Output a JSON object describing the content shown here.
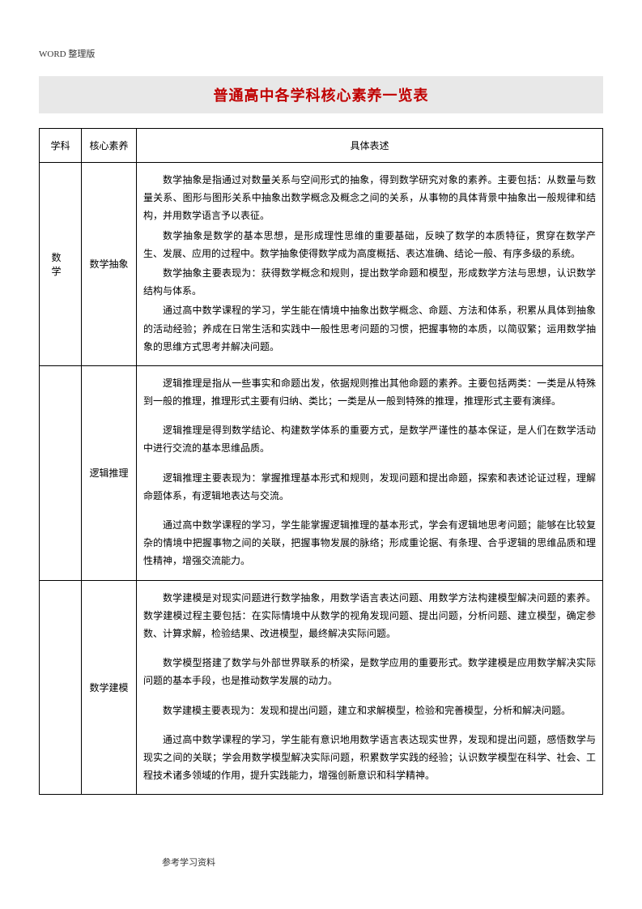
{
  "header": "WORD 整理版",
  "title": "普通高中各学科核心素养一览表",
  "table": {
    "headers": {
      "subject": "学科",
      "core": "核心素养",
      "desc": "具体表述"
    },
    "subject": "数 学",
    "rows": [
      {
        "core": "数学抽象",
        "paragraphs": [
          "数学抽象是指通过对数量关系与空间形式的抽象，得到数学研究对象的素养。主要包括：从数量与数量关系、图形与图形关系中抽象出数学概念及概念之间的关系，从事物的具体背景中抽象出一般规律和结构，并用数学语言予以表征。",
          "数学抽象是数学的基本思想，是形成理性思维的重要基础，反映了数学的本质特征，贯穿在数学产生、发展、应用的过程中。数学抽象使得数学成为高度概括、表达准确、结论一般、有序多级的系统。",
          "数学抽象主要表现为：获得数学概念和规则，提出数学命题和模型，形成数学方法与思想，认识数学结构与体系。",
          "通过高中数学课程的学习，学生能在情境中抽象出数学概念、命题、方法和体系，积累从具体到抽象的活动经验；养成在日常生活和实践中一般性思考问题的习惯，把握事物的本质，以简驭繁；运用数学抽象的思维方式思考并解决问题。"
        ]
      },
      {
        "core": "逻辑推理",
        "paragraphs": [
          "逻辑推理是指从一些事实和命题出发，依据规则推出其他命题的素养。主要包括两类：一类是从特殊到一般的推理，推理形式主要有归纳、类比；一类是从一般到特殊的推理，推理形式主要有演绎。",
          "逻辑推理是得到数学结论、构建数学体系的重要方式，是数学严谨性的基本保证，是人们在数学活动中进行交流的基本思维品质。",
          "逻辑推理主要表现为：掌握推理基本形式和规则，发现问题和提出命题，探索和表述论证过程，理解命题体系，有逻辑地表达与交流。",
          "通过高中数学课程的学习，学生能掌握逻辑推理的基本形式，学会有逻辑地思考问题；能够在比较复杂的情境中把握事物之间的关联，把握事物发展的脉络；形成重论据、有条理、合乎逻辑的思维品质和理性精神，增强交流能力。"
        ]
      },
      {
        "core": "数学建模",
        "paragraphs": [
          "数学建模是对现实问题进行数学抽象，用数学语言表达问题、用数学方法构建模型解决问题的素养。数学建模过程主要包括：在实际情境中从数学的视角发现问题、提出问题，分析问题、建立模型，确定参数、计算求解，检验结果、改进模型，最终解决实际问题。",
          "数学模型搭建了数学与外部世界联系的桥梁，是数学应用的重要形式。数学建模是应用数学解决实际问题的基本手段，也是推动数学发展的动力。",
          "数学建模主要表现为：发现和提出问题，建立和求解模型，检验和完善模型，分析和解决问题。",
          "通过高中数学课程的学习，学生能有意识地用数学语言表达现实世界，发现和提出问题，感悟数学与现实之间的关联；学会用数学模型解决实际问题，积累数学实践的经验；认识数学模型在科学、社会、工程技术诸多领域的作用，提升实践能力，增强创新意识和科学精神。"
        ]
      }
    ]
  },
  "footer": "参考学习资料"
}
